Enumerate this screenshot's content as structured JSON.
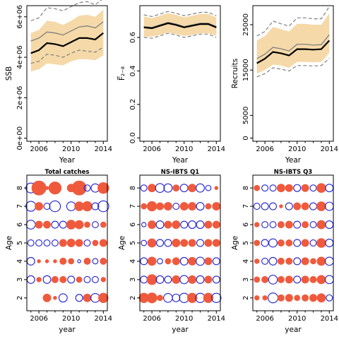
{
  "colors": {
    "band": "#f5d9a8",
    "pos": "#f05a3c",
    "neg": "#1f1fd0",
    "line": "#000000",
    "grey": "#808080",
    "dash": "#808080"
  },
  "chart_data": [
    {
      "type": "line",
      "xlabel": "Year",
      "ylabel": "SSB",
      "xlim": [
        2004.5,
        2014.5
      ],
      "ylim": [
        -150000,
        6550000
      ],
      "xticks": [
        2006,
        2010,
        2014
      ],
      "yticks": [
        0,
        2000000,
        4000000,
        6000000
      ],
      "ytick_labels": [
        "0e+00",
        "2e+06",
        "4e+06",
        "6e+06"
      ],
      "x": [
        2005,
        2006,
        2007,
        2008,
        2009,
        2010,
        2011,
        2012,
        2013,
        2014
      ],
      "median": [
        4200000,
        4350000,
        4700000,
        4650000,
        4550000,
        4750000,
        4950000,
        4950000,
        4880000,
        5200000
      ],
      "mean": [
        4800000,
        4950000,
        5250000,
        5200000,
        5100000,
        5300000,
        5500000,
        5550000,
        5450000,
        5750000
      ],
      "lower": [
        3300000,
        3400000,
        3700000,
        3650000,
        3600000,
        3800000,
        3900000,
        3900000,
        3850000,
        4100000
      ],
      "upper": [
        5200000,
        5350000,
        5800000,
        5750000,
        5600000,
        5800000,
        6050000,
        6100000,
        6000000,
        6350000
      ],
      "low_dash": [
        3700000,
        3800000,
        4150000,
        4100000,
        4000000,
        4200000,
        4350000,
        4300000,
        4250000,
        4500000
      ],
      "high_dash": [
        5800000,
        5950000,
        6450000,
        6400000,
        6300000,
        6500000,
        6700000,
        6750000,
        6600000,
        6900000
      ]
    },
    {
      "type": "line",
      "xlabel": "Year",
      "ylabel": "F̅₂₋₈",
      "xlim": [
        2004.5,
        2014.5
      ],
      "ylim": [
        -0.02,
        0.79
      ],
      "xticks": [
        2006,
        2010,
        2014
      ],
      "yticks": [
        0.0,
        0.2,
        0.4,
        0.6
      ],
      "ytick_labels": [
        "0.0",
        "0.2",
        "0.4",
        "0.6"
      ],
      "x": [
        2005,
        2006,
        2007,
        2008,
        2009,
        2010,
        2011,
        2012,
        2013,
        2014
      ],
      "median": [
        0.66,
        0.655,
        0.67,
        0.685,
        0.675,
        0.66,
        0.67,
        0.68,
        0.68,
        0.66
      ],
      "mean": [
        0.665,
        0.66,
        0.675,
        0.69,
        0.68,
        0.665,
        0.675,
        0.685,
        0.685,
        0.665
      ],
      "lower": [
        0.605,
        0.605,
        0.615,
        0.63,
        0.62,
        0.61,
        0.615,
        0.625,
        0.625,
        0.61
      ],
      "upper": [
        0.725,
        0.715,
        0.73,
        0.745,
        0.735,
        0.72,
        0.73,
        0.74,
        0.74,
        0.72
      ],
      "low_dash": [
        0.6,
        0.595,
        0.61,
        0.625,
        0.615,
        0.6,
        0.61,
        0.62,
        0.62,
        0.6
      ],
      "high_dash": [
        0.735,
        0.725,
        0.74,
        0.755,
        0.745,
        0.73,
        0.74,
        0.75,
        0.75,
        0.73
      ]
    },
    {
      "type": "line",
      "xlabel": "Year",
      "ylabel": "Recruits",
      "xlim": [
        2004.5,
        2014.5
      ],
      "ylim": [
        -700,
        29200
      ],
      "xticks": [
        2006,
        2010,
        2014
      ],
      "yticks": [
        0,
        5000,
        15000,
        25000
      ],
      "ytick_labels": [
        "0",
        "5000",
        "15000",
        "25000"
      ],
      "x": [
        2005,
        2006,
        2007,
        2008,
        2009,
        2010,
        2011,
        2012,
        2013,
        2014
      ],
      "median": [
        16500,
        17500,
        19000,
        18700,
        18200,
        19600,
        19600,
        19500,
        19600,
        21500
      ],
      "mean": [
        17500,
        18500,
        20000,
        19700,
        19200,
        20700,
        20700,
        20500,
        20600,
        22800
      ],
      "lower": [
        14200,
        15000,
        16200,
        16000,
        15500,
        16800,
        16800,
        16700,
        16800,
        18800
      ],
      "upper": [
        21500,
        22500,
        24500,
        24000,
        23500,
        25200,
        25200,
        25000,
        25000,
        27500
      ],
      "low_dash": [
        13500,
        14200,
        15500,
        15200,
        14800,
        16000,
        16000,
        15900,
        16000,
        17600
      ],
      "high_dash": [
        22500,
        23500,
        25800,
        25200,
        24700,
        26500,
        26500,
        26300,
        26300,
        29000
      ]
    },
    {
      "type": "scatter",
      "title": "Total catches",
      "xlabel": "year",
      "ylabel": "Age",
      "xlim": [
        2004.5,
        2014.5
      ],
      "ylim": [
        1.3,
        8.7
      ],
      "xticks": [
        2006,
        2010,
        2014
      ],
      "yticks": [
        2,
        3,
        4,
        5,
        6,
        7,
        8
      ],
      "years": [
        2005,
        2006,
        2007,
        2008,
        2009,
        2010,
        2011,
        2012,
        2013,
        2014
      ],
      "ages": [
        8,
        7,
        6,
        5,
        4,
        3,
        2
      ],
      "residuals": [
        [
          -1.0,
          2.0,
          0.1,
          1.5,
          0,
          0.6,
          2.0,
          -0.4,
          -0.7,
          1.2
        ],
        [
          -1.0,
          0.6,
          -0.4,
          -1.2,
          0,
          -0.8,
          0.8,
          0.9,
          -0.5,
          -1.2
        ],
        [
          -0.8,
          0.5,
          0.5,
          -0.5,
          -0.5,
          0.8,
          0.7,
          0.3,
          -0.4,
          0.3
        ],
        [
          -0.4,
          -0.4,
          -0.4,
          -0.4,
          0.5,
          0.6,
          0.5,
          -0.4,
          0.3,
          0.5
        ],
        [
          -0.6,
          0.1,
          0.1,
          0.1,
          0.4,
          0.3,
          -0.1,
          0.4,
          -0.3,
          0.4
        ],
        [
          -0.6,
          0.2,
          -0.6,
          0.4,
          0.4,
          -0.5,
          0.3,
          -0.4,
          -0.4,
          0.2
        ],
        [
          0,
          0,
          0.6,
          0.1,
          -0.7,
          0,
          -0.5,
          0.6,
          -0.8,
          0.9
        ]
      ]
    },
    {
      "type": "scatter",
      "title": "NS-IBTS Q1",
      "xlabel": "year",
      "ylabel": "Age",
      "xlim": [
        2004.5,
        2014.5
      ],
      "ylim": [
        1.3,
        8.7
      ],
      "xticks": [
        2006,
        2010,
        2014
      ],
      "yticks": [
        2,
        3,
        4,
        5,
        6,
        7,
        8
      ],
      "years": [
        2005,
        2006,
        2007,
        2008,
        2009,
        2010,
        2011,
        2012,
        2013,
        2014
      ],
      "ages": [
        8,
        7,
        6,
        5,
        4,
        3,
        2
      ],
      "residuals": [
        [
          -0.4,
          0.6,
          -0.8,
          -0.7,
          0.4,
          -0.6,
          0.6,
          -0.7,
          -0.3,
          0.1
        ],
        [
          0.3,
          0.9,
          0.5,
          0.6,
          -0.4,
          0.6,
          0.6,
          -0.6,
          0.3,
          0.6
        ],
        [
          -0.2,
          0.6,
          -0.6,
          0.5,
          0.6,
          -0.5,
          -0.6,
          -0.6,
          0.5,
          0.5
        ],
        [
          -0.3,
          0.7,
          -0.5,
          -0.5,
          0.6,
          0.5,
          0.5,
          -0.5,
          0.5,
          0.5
        ],
        [
          -0.5,
          0.7,
          -0.3,
          0.3,
          0.5,
          -0.6,
          0.6,
          -0.7,
          0.5,
          -0.5
        ],
        [
          -0.5,
          1.0,
          -0.6,
          -0.5,
          0.6,
          -0.7,
          0.6,
          -0.6,
          0.5,
          -0.5
        ],
        [
          0.9,
          1.0,
          0.3,
          -0.8,
          -0.6,
          -0.9,
          0.9,
          -0.9,
          0.9,
          -0.9
        ]
      ]
    },
    {
      "type": "scatter",
      "title": "NS-IBTS Q3",
      "xlabel": "year",
      "ylabel": "Age",
      "xlim": [
        2004.5,
        2014.5
      ],
      "ylim": [
        1.3,
        8.7
      ],
      "xticks": [
        2006,
        2010,
        2014
      ],
      "yticks": [
        2,
        3,
        4,
        5,
        6,
        7,
        8
      ],
      "years": [
        2005,
        2006,
        2007,
        2008,
        2009,
        2010,
        2011,
        2012,
        2013,
        2014
      ],
      "ages": [
        8,
        7,
        6,
        5,
        4,
        3,
        2
      ],
      "residuals": [
        [
          0.3,
          -0.4,
          -0.4,
          0.6,
          0.5,
          -0.5,
          0.5,
          -0.4,
          0.8,
          -0.6
        ],
        [
          -0.4,
          -0.5,
          -0.5,
          0.1,
          -0.5,
          0.5,
          0.5,
          -0.5,
          0.8,
          -0.7
        ],
        [
          0.2,
          -0.4,
          -0.4,
          0.4,
          0.5,
          -0.5,
          0.4,
          -0.4,
          0.7,
          -0.6
        ],
        [
          0.3,
          -0.5,
          -0.7,
          0.4,
          0.4,
          -0.5,
          0.5,
          -0.4,
          0.8,
          -0.6
        ],
        [
          0.2,
          -0.4,
          -0.6,
          0.4,
          0.4,
          -0.5,
          0.5,
          0.3,
          0.7,
          -0.7
        ],
        [
          0.3,
          0.4,
          -0.8,
          0.4,
          0.5,
          -0.5,
          0.5,
          0.4,
          0.7,
          -0.7
        ],
        [
          0.2,
          0.2,
          -1.0,
          0.4,
          0.5,
          0.3,
          0.4,
          0.5,
          0.7,
          -0.4
        ]
      ]
    }
  ]
}
